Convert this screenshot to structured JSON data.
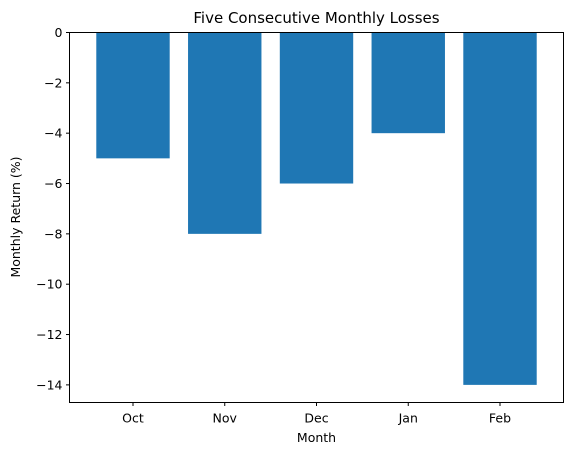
{
  "chart_data": {
    "type": "bar",
    "title": "Five Consecutive Monthly Losses",
    "xlabel": "Month",
    "ylabel": "Monthly Return (%)",
    "categories": [
      "Oct",
      "Nov",
      "Dec",
      "Jan",
      "Feb"
    ],
    "values": [
      -5,
      -8,
      -6,
      -4,
      -14
    ],
    "ylim": [
      -14.7,
      0
    ],
    "yticks": [
      "0",
      "−2",
      "−4",
      "−6",
      "−8",
      "−10",
      "−12",
      "−14"
    ],
    "grid": false,
    "bar_color": "#1f77b4"
  }
}
